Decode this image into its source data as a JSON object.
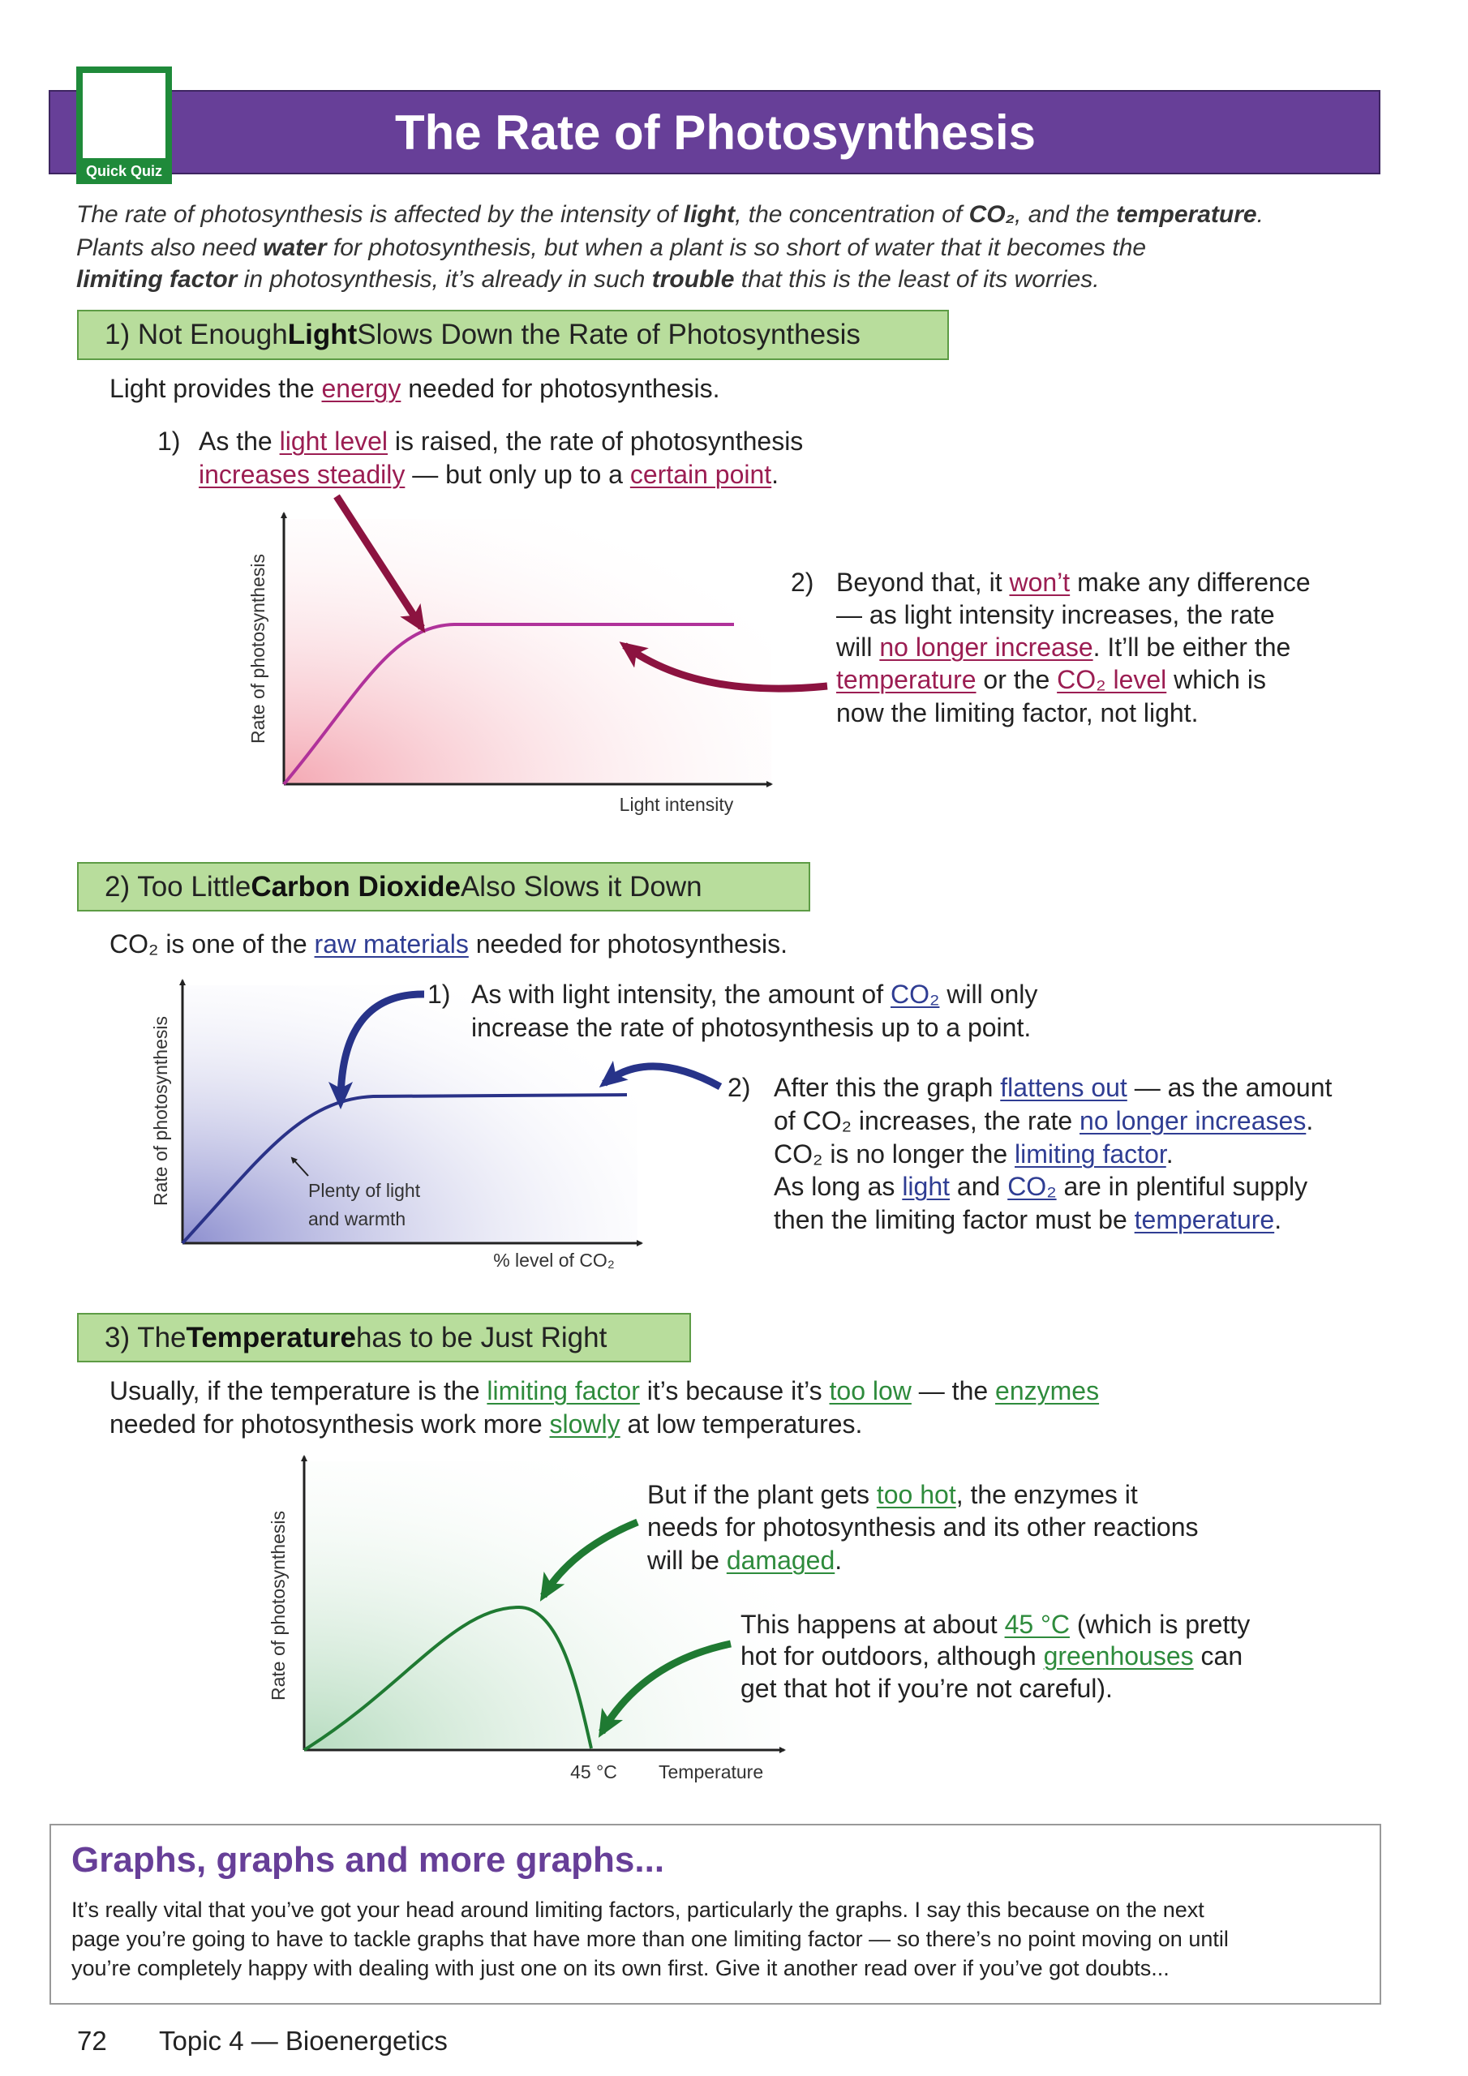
{
  "header": {
    "title": "The Rate of Photosynthesis",
    "badge": "Quick Quiz"
  },
  "intro": [
    [
      "The rate of photosynthesis is affected by the intensity of ",
      "light",
      ", the concentration of ",
      "CO₂",
      ", and the ",
      "temperature",
      "."
    ],
    [
      "Plants also need ",
      "water",
      " for photosynthesis, but when a plant is so short of water that it becomes the"
    ],
    [
      "limiting factor",
      " in photosynthesis, it’s already in such ",
      "trouble",
      " that this is the least of its worries."
    ]
  ],
  "section1": {
    "heading": [
      "1) Not Enough ",
      "Light",
      " Slows Down the Rate of Photosynthesis"
    ],
    "intro": [
      "Light provides the ",
      "energy",
      " needed for photosynthesis."
    ],
    "item1": {
      "number": "1)",
      "lines": [
        [
          "As the ",
          "light level",
          " is raised, the rate of photosynthesis"
        ],
        [
          "increases steadily",
          " — but only up to a ",
          "certain point",
          "."
        ]
      ]
    },
    "item2": {
      "number": "2)",
      "lines": [
        [
          "Beyond that, it ",
          "won’t",
          " make any difference"
        ],
        [
          "— as light intensity increases, the rate"
        ],
        [
          "will ",
          "no longer increase",
          ".  It’ll be either the"
        ],
        [
          "temperature",
          " or the ",
          "CO₂ level",
          " which is"
        ],
        [
          "now the limiting factor, not light."
        ]
      ]
    },
    "graph": {
      "y_label": "Rate of photosynthesis",
      "x_label": "Light intensity"
    }
  },
  "section2": {
    "heading": [
      "2) Too Little ",
      "Carbon Dioxide",
      " Also Slows it Down"
    ],
    "intro": [
      "CO₂ is one of the ",
      "raw materials",
      " needed for photosynthesis."
    ],
    "item1": {
      "number": "1)",
      "lines": [
        [
          "As with light intensity, the amount of ",
          "CO₂",
          " will only"
        ],
        [
          "increase the rate of photosynthesis up to a point."
        ]
      ]
    },
    "item2": {
      "number": "2)",
      "lines": [
        [
          "After this the graph ",
          "flattens out",
          " — as the amount"
        ],
        [
          "of CO₂ increases, the rate ",
          "no longer increases",
          "."
        ],
        [
          "CO₂ is no longer the ",
          "limiting factor",
          "."
        ],
        [
          "As long as ",
          "light",
          " and ",
          "CO₂",
          " are in plentiful supply"
        ],
        [
          "then the limiting factor must be ",
          "temperature",
          "."
        ]
      ]
    },
    "graph": {
      "y_label": "Rate of photosynthesis",
      "x_label": "% level of CO₂",
      "annotation": [
        "Plenty of light",
        "and warmth"
      ]
    }
  },
  "section3": {
    "heading": [
      "3) The ",
      "Temperature",
      " has to be Just Right"
    ],
    "intro": [
      [
        "Usually, if the temperature is the ",
        "limiting factor",
        " it’s because it’s ",
        "too low",
        " — the ",
        "enzymes"
      ],
      [
        "needed for photosynthesis work more ",
        "slowly",
        " at low temperatures."
      ]
    ],
    "text_a": [
      [
        "But if the plant gets ",
        "too hot",
        ", the enzymes it"
      ],
      [
        "needs for photosynthesis and its other reactions"
      ],
      [
        "will be ",
        "damaged",
        "."
      ]
    ],
    "text_b": [
      [
        "This happens at about ",
        "45 °C",
        " (which is pretty"
      ],
      [
        "hot for outdoors, although ",
        "greenhouses",
        " can"
      ],
      [
        "get that hot if you’re not careful)."
      ]
    ],
    "graph": {
      "y_label": "Rate of photosynthesis",
      "x_label": "Temperature",
      "peak_label": "45 °C"
    }
  },
  "tip": {
    "title": "Graphs, graphs and more graphs...",
    "lines": [
      "It’s really vital that you’ve got your head around limiting factors, particularly the graphs.  I say this because on the next",
      "page you’re going to have to tackle graphs that have more than one limiting factor — so there’s no point moving on until",
      "you’re completely happy with dealing with just one on its own first.  Give it another read over if you’ve got doubts..."
    ]
  },
  "footer": {
    "page": "72",
    "topic": "Topic 4 — Bioenergetics"
  }
}
